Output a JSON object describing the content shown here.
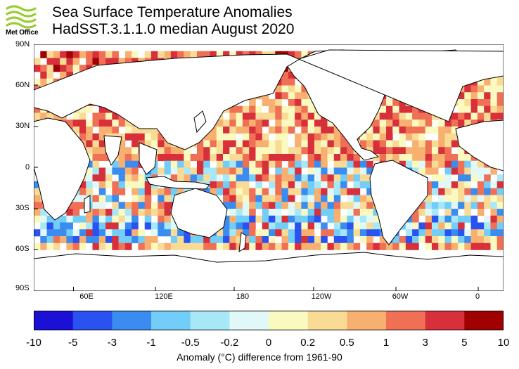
{
  "logo": {
    "text": "Met Office",
    "color": "#9acd32"
  },
  "title": "Sea Surface Temperature Anomalies",
  "subtitle": "HadSST.3.1.1.0 median August 2020",
  "map": {
    "lat_labels": [
      "90N",
      "60N",
      "30N",
      "0",
      "30S",
      "60S",
      "90S"
    ],
    "lon_labels": [
      "60E",
      "120E",
      "180",
      "120W",
      "60W",
      "0"
    ]
  },
  "colorbar": {
    "colors": [
      "#1a10d6",
      "#2a52f0",
      "#3a8cf0",
      "#72cdf8",
      "#a6e8f8",
      "#e0f8f8",
      "#fafac0",
      "#fadb96",
      "#f8b070",
      "#f07055",
      "#d8303a",
      "#a00000"
    ],
    "ticks": [
      "-10",
      "-5",
      "-3",
      "-1",
      "-0.5",
      "-0.2",
      "0",
      "0.2",
      "0.5",
      "1",
      "3",
      "5",
      "10"
    ]
  },
  "caption": "Anomaly (°C) difference from 1961-90"
}
